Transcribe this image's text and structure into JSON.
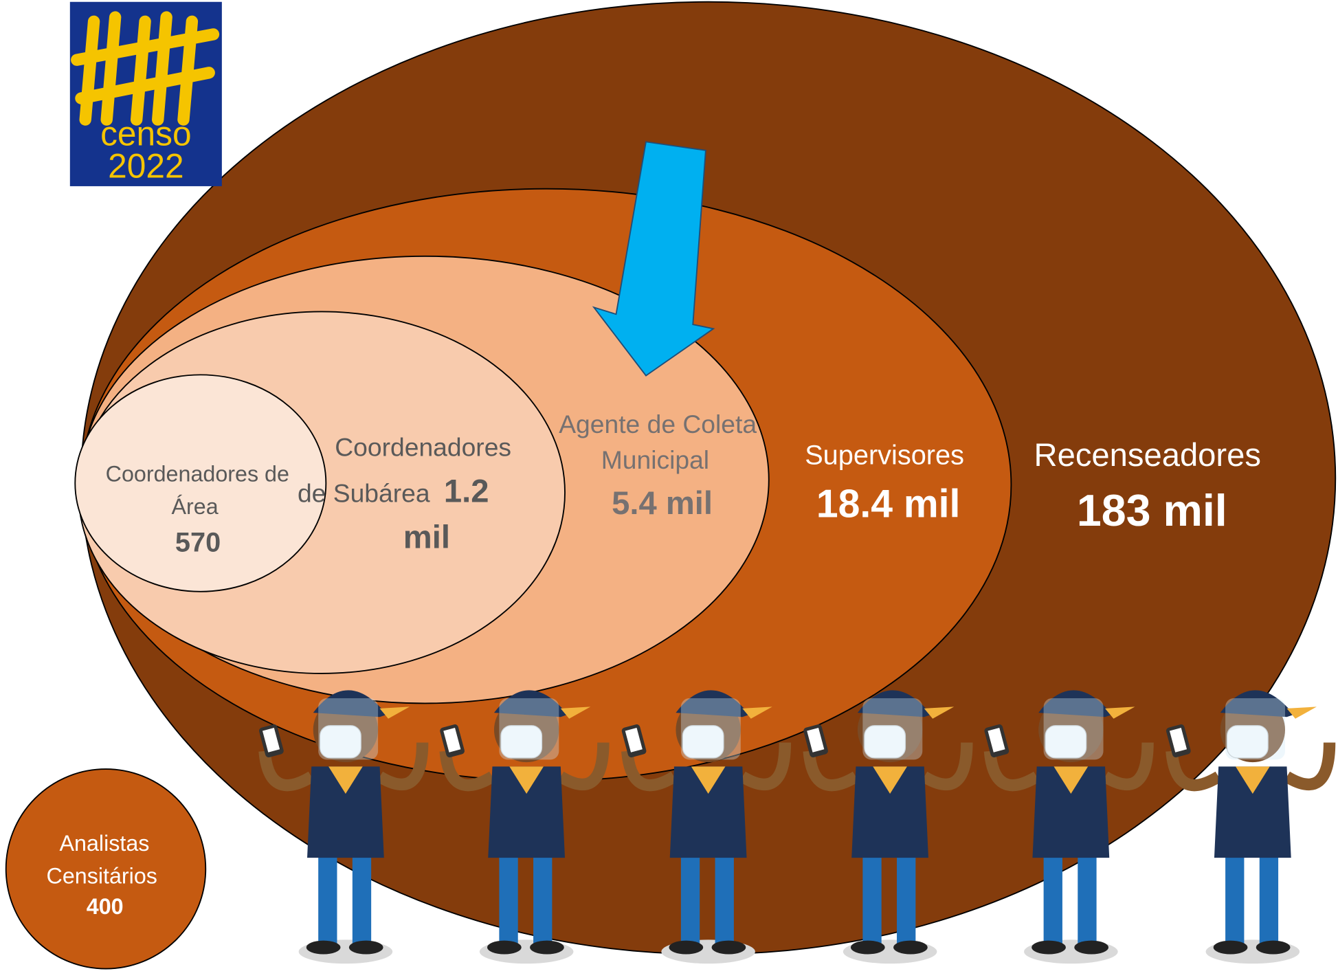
{
  "logo": {
    "line1": "censo",
    "line2": "2022"
  },
  "nodes": [
    {
      "label_lines": [
        "Coordenadores de",
        "Área"
      ],
      "value": "570"
    },
    {
      "label_lines": [
        "Coordenadores",
        "de Subárea"
      ],
      "value_lines": [
        "1.2",
        "mil"
      ]
    },
    {
      "label_lines": [
        "Agente de Coleta",
        "Municipal"
      ],
      "value": "5.4 mil"
    },
    {
      "label_lines": [
        "Supervisores"
      ],
      "value": "18.4 mil"
    },
    {
      "label_lines": [
        "Recenseadores"
      ],
      "value": "183 mil"
    },
    {
      "label_lines": [
        "Analistas",
        "Censitários"
      ],
      "value": "400"
    }
  ]
}
